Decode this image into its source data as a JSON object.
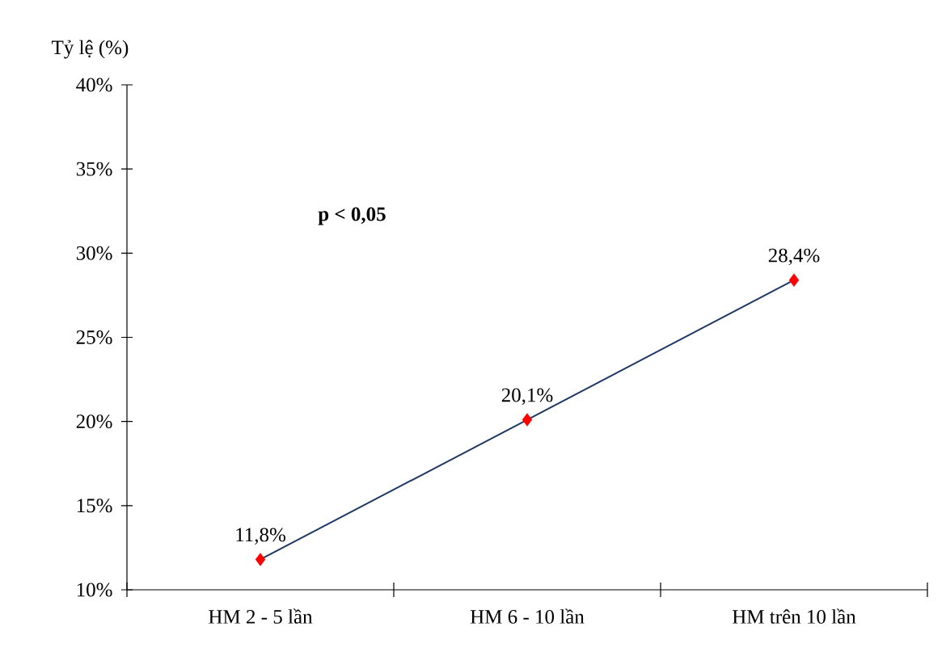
{
  "chart_data": {
    "type": "line",
    "ylabel": "Tỷ lệ (%)",
    "categories": [
      "HM 2 - 5 lần",
      "HM 6 - 10 lần",
      "HM trên 10 lần"
    ],
    "values": [
      11.8,
      20.1,
      28.4
    ],
    "value_labels": [
      "11,8%",
      "20,1%",
      "28,4%"
    ],
    "color": "#1f3864",
    "colors": [
      "#ff0000",
      "#ff0000",
      "#ff0000"
    ],
    "marker": "diamond",
    "line_style": "solid",
    "ylim": [
      10,
      40
    ],
    "yticks": [
      {
        "value": 10,
        "label": "10%"
      },
      {
        "value": 15,
        "label": "15%"
      },
      {
        "value": 20,
        "label": "20%"
      },
      {
        "value": 25,
        "label": "25%"
      },
      {
        "value": 30,
        "label": "30%"
      },
      {
        "value": 35,
        "label": "35%"
      },
      {
        "value": 40,
        "label": "40%"
      }
    ],
    "annotations": [
      "**p < 0,05**"
    ]
  }
}
